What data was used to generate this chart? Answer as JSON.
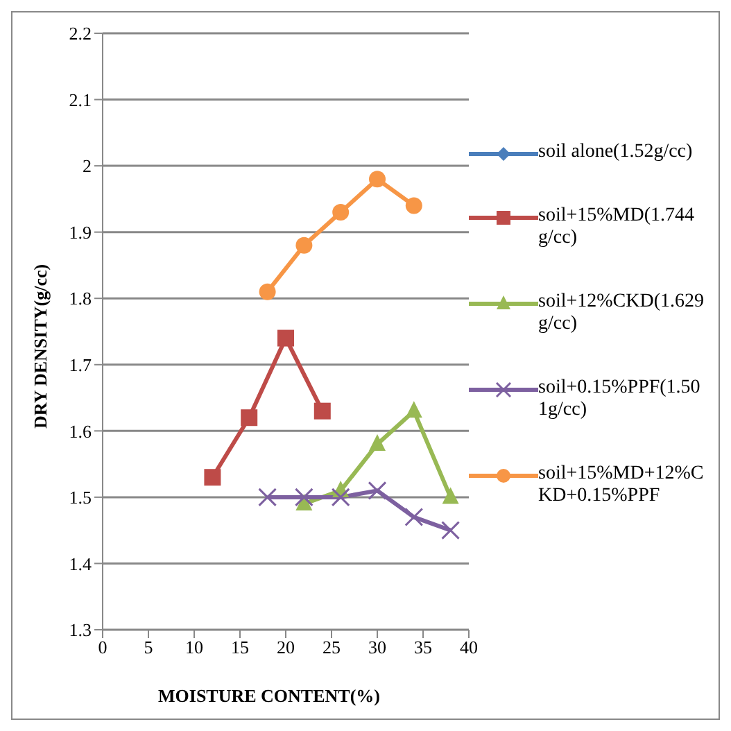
{
  "chart_data": {
    "type": "line",
    "xlabel": "MOISTURE CONTENT(%)",
    "ylabel": "DRY DENSITY(g/cc)",
    "xlim": [
      0,
      40
    ],
    "xticks": [
      0,
      5,
      10,
      15,
      20,
      25,
      30,
      35,
      40
    ],
    "ylim": [
      1.3,
      2.2
    ],
    "yticks": [
      1.3,
      1.4,
      1.5,
      1.6,
      1.7,
      1.8,
      1.9,
      2,
      2.1,
      2.2
    ],
    "grid": "y",
    "legend": "right",
    "series": [
      {
        "name": "soil alone(1.52g/cc)",
        "color": "#4a7ebb",
        "marker": "diamond"
      },
      {
        "name": "soil+15%MD(1.744g/cc)",
        "color": "#be4b48",
        "marker": "square",
        "x": [
          12,
          16,
          20,
          24
        ],
        "values": [
          1.53,
          1.62,
          1.74,
          1.63
        ]
      },
      {
        "name": "soil+12%CKD(1.629g/cc)",
        "color": "#98b954",
        "marker": "triangle",
        "x": [
          22,
          26,
          30,
          34,
          38
        ],
        "values": [
          1.49,
          1.51,
          1.58,
          1.63,
          1.5
        ]
      },
      {
        "name": "soil+0.15%PPF(1.501g/cc)",
        "color": "#7d60a0",
        "marker": "cross",
        "x": [
          18,
          22,
          26,
          30,
          34,
          38
        ],
        "values": [
          1.5,
          1.5,
          1.5,
          1.51,
          1.47,
          1.45
        ]
      },
      {
        "name": "soil+15%MD+12%CKD+0.15%PPF",
        "color": "#f79646",
        "marker": "circle",
        "x": [
          18,
          22,
          26,
          30,
          34
        ],
        "values": [
          1.81,
          1.88,
          1.93,
          1.98,
          1.94
        ]
      }
    ]
  }
}
